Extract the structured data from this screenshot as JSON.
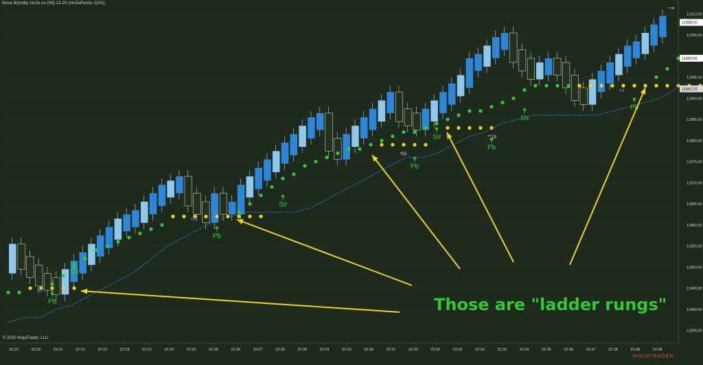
{
  "header": {
    "title": "Nova Wyndby ninZa.co (NQ 12-20 (ninZaRenko 12/4))",
    "expand_icon": "arrow-right-icon"
  },
  "footer": {
    "copyright": "© 2020 NinjaTrader, LLC",
    "instrument": "NQ 12-20",
    "brand": "NINJATRADER"
  },
  "annotation": {
    "caption": "Those are \"ladder rungs\"",
    "caption_color": "#33c832",
    "arrow_color": "#f2d21a"
  },
  "colors": {
    "background": "#1e2a1e",
    "up_bar_dark": "#2e86d8",
    "up_bar_light": "#8ec8ea",
    "down_bar": "#24301e",
    "wick": "#c8d0c8",
    "trail_green": "#2ecc2e",
    "rung_yellow": "#f2d21a",
    "base_line": "#3a8ad0",
    "axis_text": "#cfd6cf"
  },
  "chart_data": {
    "type": "line",
    "title": "",
    "ylim": [
      11832,
      11912
    ],
    "y_ticks": [
      "11910.00",
      "11905.00",
      "11900.00",
      "11895.00",
      "11890.00",
      "11885.00",
      "11880.00",
      "11875.00",
      "11870.00",
      "11865.00",
      "11860.00",
      "11855.00",
      "11850.00",
      "11845.00",
      "11840.00",
      "11835.00"
    ],
    "x_ticks": [
      "22:20",
      "22:20",
      "22:21",
      "22:21",
      "22:22",
      "22:23",
      "22:23",
      "22:24",
      "22:25",
      "22:26",
      "22:26",
      "22:27",
      "22:28",
      "22:28",
      "22:29",
      "22:29",
      "22:30",
      "22:31",
      "22:32",
      "22:32",
      "22:32",
      "22:33",
      "22:34",
      "22:34",
      "22:35",
      "22:36",
      "22:37",
      "22:38",
      "22:38",
      "22:38"
    ],
    "price_labels": [
      {
        "label": "11908.00",
        "value": 11908.0,
        "style": "current"
      },
      {
        "label": "11899.50",
        "value": 11899.5,
        "style": "trail"
      },
      {
        "label": "11892.25",
        "value": 11892.25,
        "style": "base"
      }
    ],
    "price_series": {
      "name": "",
      "values": [
        11854,
        11851,
        11849,
        11847,
        11846,
        11845,
        11848,
        11850,
        11852,
        11854,
        11856,
        11858,
        11860,
        11861,
        11862,
        11864,
        11866,
        11868,
        11869,
        11870,
        11866,
        11864,
        11862,
        11866,
        11864,
        11864,
        11868,
        11870,
        11872,
        11874,
        11876,
        11878,
        11880,
        11882,
        11884,
        11885,
        11879,
        11877,
        11880,
        11882,
        11884,
        11886,
        11888,
        11890,
        11886,
        11885,
        11884,
        11886,
        11888,
        11890,
        11892,
        11894,
        11898,
        11899,
        11901,
        11903,
        11904,
        11900,
        11898,
        11896,
        11897,
        11898,
        11897,
        11894,
        11891,
        11890,
        11893,
        11895,
        11897,
        11899,
        11901,
        11902,
        11904,
        11906,
        11908
      ]
    },
    "trail_series": {
      "name": "",
      "values": [
        11844,
        11844,
        11845,
        11845,
        11846,
        11848,
        11850,
        11852,
        11854,
        11855,
        11856,
        11857,
        11858,
        11859,
        11860,
        11862,
        11862,
        11862,
        11862,
        11862,
        11862,
        11863,
        11865,
        11867,
        11869,
        11871,
        11872,
        11874,
        11875,
        11876,
        11877,
        11878,
        11878,
        11879,
        11880,
        11881,
        11882,
        11882,
        11883,
        11884,
        11885,
        11886,
        11887,
        11887,
        11888,
        11889,
        11890,
        11892,
        11893,
        11893,
        11893,
        11893,
        11893,
        11893,
        11893,
        11893,
        11893,
        11893,
        11893,
        11895,
        11897,
        11899.5
      ]
    },
    "base_series": {
      "name": "",
      "values": [
        11837,
        11838,
        11838,
        11840,
        11841,
        11843,
        11845,
        11847,
        11849,
        11852,
        11855,
        11857,
        11859,
        11861,
        11862,
        11863,
        11863,
        11863,
        11863,
        11864,
        11866,
        11868,
        11870,
        11872,
        11874,
        11876,
        11876,
        11877,
        11879,
        11881,
        11882,
        11884,
        11885,
        11886,
        11886,
        11886,
        11886,
        11886,
        11887,
        11888,
        11889,
        11890,
        11892.25
      ]
    },
    "rungs": [
      {
        "from": 2,
        "to": 6,
        "value": 11845
      },
      {
        "from": 15,
        "to": 23,
        "value": 11862
      },
      {
        "from": 34,
        "to": 38,
        "value": 11879
      },
      {
        "from": 40,
        "to": 44,
        "value": 11883
      },
      {
        "from": 52,
        "to": 66,
        "value": 11893
      }
    ],
    "signals": [
      {
        "label": "Pb",
        "index": 4,
        "value": 11842,
        "color": "#2ecc2e",
        "arrow": true
      },
      {
        "label": "Str",
        "index": 6,
        "value": 11849,
        "color": "#2ecc2e",
        "arrow": true
      },
      {
        "label": "Pb",
        "index": 19,
        "value": 11857.5,
        "color": "#2ecc2e",
        "arrow": true
      },
      {
        "label": "Str",
        "index": 25,
        "value": 11865,
        "color": "#2ecc2e",
        "arrow": true
      },
      {
        "label": "Pb",
        "index": 37,
        "value": 11874,
        "color": "#2ecc2e",
        "arrow": true
      },
      {
        "label": "Str",
        "index": 39,
        "value": 11881,
        "color": "#2ecc2e",
        "arrow": true
      },
      {
        "label": "Pb",
        "index": 44,
        "value": 11878.5,
        "color": "#2ecc2e",
        "arrow": true
      },
      {
        "label": "Str",
        "index": 47,
        "value": 11885.5,
        "color": "#2ecc2e",
        "arrow": true
      },
      {
        "label": "Pb",
        "index": 57,
        "value": 11888,
        "color": "#2ecc2e",
        "arrow": true
      },
      {
        "label": "Str",
        "index": 67,
        "value": 11896,
        "color": "#2ecc2e",
        "arrow": true
      }
    ],
    "numbers": [
      {
        "label": "50",
        "index": 3,
        "value": 11844,
        "color": "#3a8ad0"
      },
      {
        "label": "68",
        "index": 17,
        "value": 11861,
        "color": "#3a8ad0"
      },
      {
        "label": "*65",
        "index": 36,
        "value": 11876.5,
        "color": "#cfd6cf"
      },
      {
        "label": "**16",
        "index": 44,
        "value": 11880.5,
        "color": "#cfd6cf"
      },
      {
        "label": "44",
        "index": 56,
        "value": 11891.5,
        "color": "#3a8ad0"
      }
    ]
  }
}
